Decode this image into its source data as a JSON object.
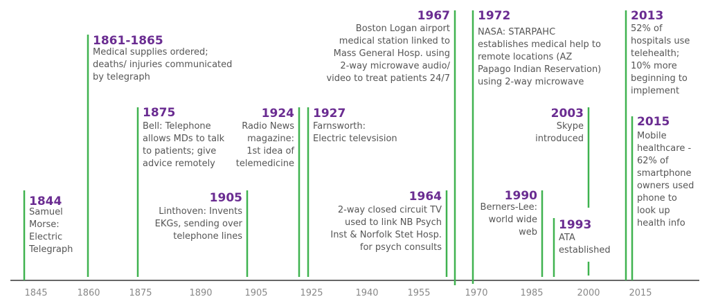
{
  "timeline": {
    "events": [
      {
        "year": "1844",
        "lines": [
          "Samuel",
          "Morse:",
          "Electric",
          "Telegraph"
        ]
      },
      {
        "year": "1861-1865",
        "lines": [
          "Medical supplies ordered;",
          "deaths/ injuries communicated",
          "by telegraph"
        ]
      },
      {
        "year": "1875",
        "lines": [
          "Bell: Telephone",
          "allows MDs to talk",
          "to patients; give",
          "advice remotely"
        ]
      },
      {
        "year": "1905",
        "lines": [
          "Linthoven: Invents",
          "EKGs, sending over",
          "telephone lines"
        ]
      },
      {
        "year": "1924",
        "lines": [
          "Radio News",
          "magazine:",
          "1st idea of",
          "telemedicine"
        ]
      },
      {
        "year": "1927",
        "lines": [
          "Farnsworth:",
          "Electric televsision"
        ]
      },
      {
        "year": "1964",
        "lines": [
          "2-way closed circuit TV",
          "used to link NB Psych",
          "Inst & Norfolk Stet Hosp.",
          "for psych consults"
        ]
      },
      {
        "year": "1967",
        "lines": [
          "Boston Logan airport",
          "medical station linked to",
          "Mass General Hosp. using",
          "2-way microwave audio/",
          "video to treat patients 24/7"
        ]
      },
      {
        "year": "1972",
        "lines": [
          "NASA: STARPAHC",
          "establishes medical help to",
          "remote locations (AZ",
          "Papago Indian Reservation)",
          "using 2-way microwave"
        ]
      },
      {
        "year": "1990",
        "lines": [
          "Berners-Lee:",
          "world wide",
          "web"
        ]
      },
      {
        "year": "1993",
        "lines": [
          "ATA",
          "established"
        ]
      },
      {
        "year": "2003",
        "lines": [
          "Skype",
          "introduced"
        ]
      },
      {
        "year": "2013",
        "lines": [
          "52% of",
          "hospitals use",
          "telehealth;",
          "10% more",
          "beginning to",
          "implement"
        ]
      },
      {
        "year": "2015",
        "lines": [
          "Mobile",
          "healthcare -",
          "62% of",
          "smartphone",
          "owners used",
          "phone to",
          "look up",
          "health info"
        ]
      }
    ],
    "axis_ticks": [
      "1845",
      "1860",
      "1875",
      "1890",
      "1905",
      "1925",
      "1940",
      "1955",
      "1970",
      "1985",
      "2000",
      "2015"
    ]
  }
}
